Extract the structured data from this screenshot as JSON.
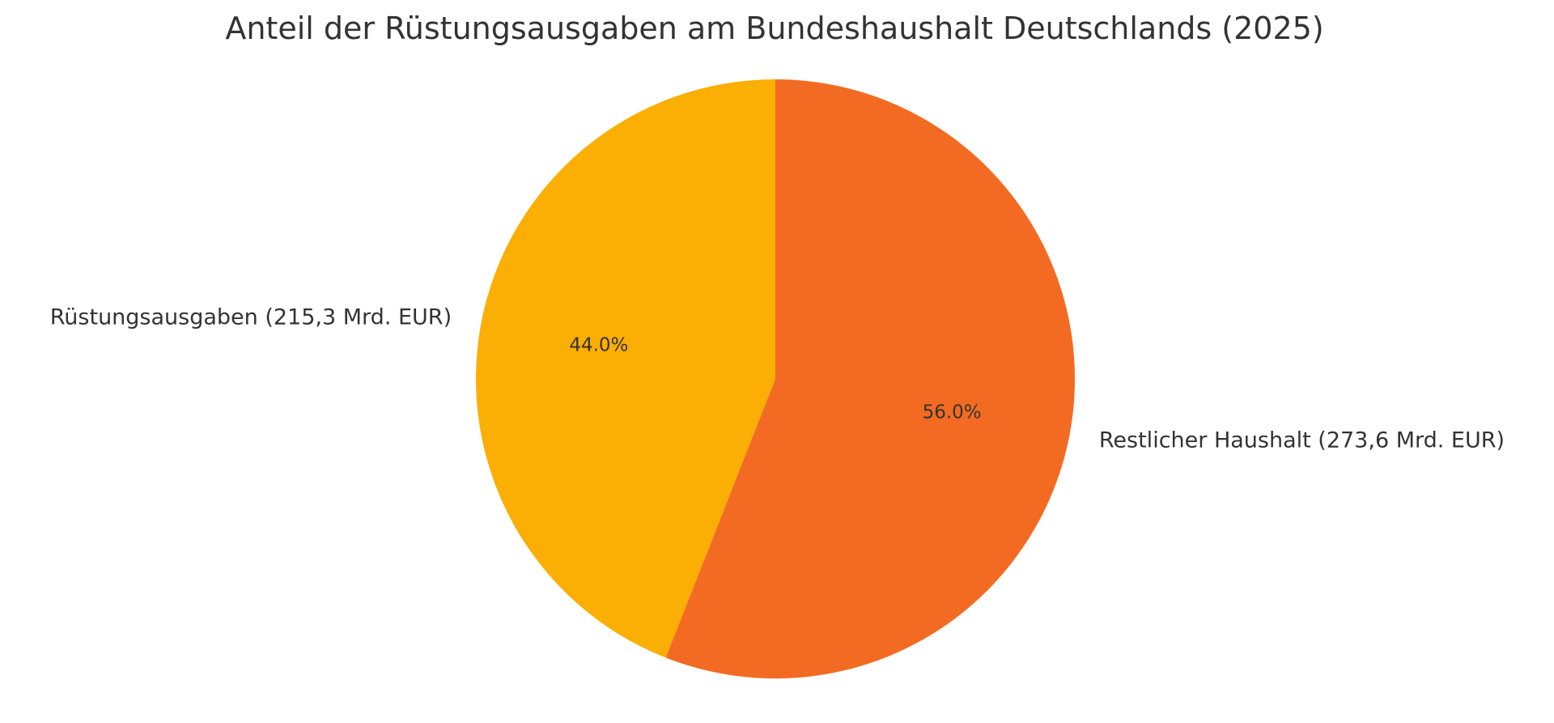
{
  "chart_data": {
    "type": "pie",
    "title": "Anteil der Rüstungsausgaben am Bundeshaushalt Deutschlands (2025)",
    "slices": [
      {
        "label": "Rüstungsausgaben (215,3 Mrd. EUR)",
        "value": 215.3,
        "percent_label": "44.0%",
        "color": "#FBAE04"
      },
      {
        "label": "Restlicher Haushalt (273,6 Mrd. EUR)",
        "value": 273.6,
        "percent_label": "56.0%",
        "color": "#F36B22"
      }
    ],
    "start_angle": "top",
    "direction": "counterclockwise"
  }
}
